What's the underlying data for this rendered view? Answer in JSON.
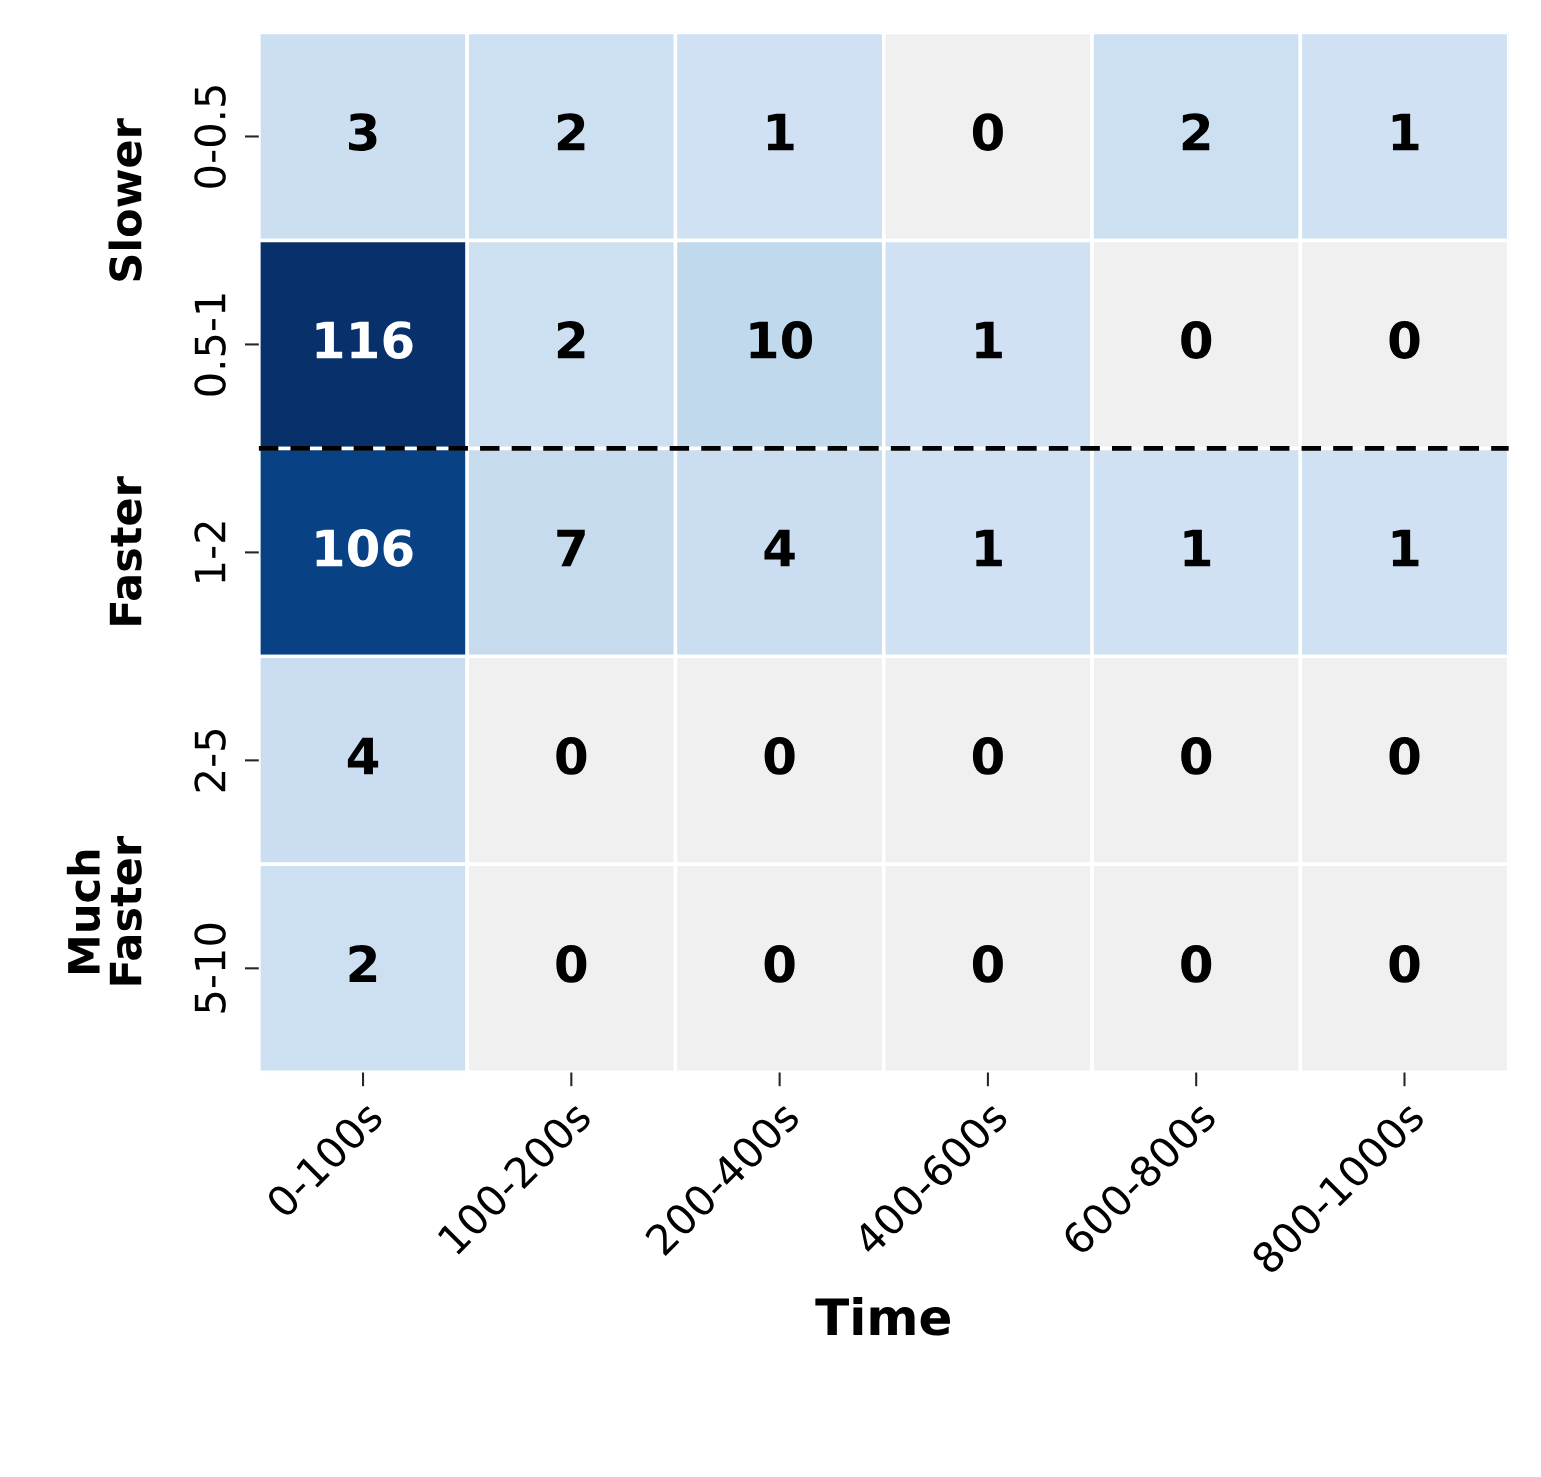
{
  "chart_data": {
    "type": "heatmap",
    "xlabel": "Time",
    "categories": [
      "0-100s",
      "100-200s",
      "200-400s",
      "400-600s",
      "600-800s",
      "800-1000s"
    ],
    "y_categories": [
      "0-0.5",
      "0.5-1",
      "1-2",
      "2-5",
      "5-10"
    ],
    "cells": [
      [
        3,
        2,
        1,
        0,
        2,
        1
      ],
      [
        116,
        2,
        10,
        1,
        0,
        0
      ],
      [
        106,
        7,
        4,
        1,
        1,
        1
      ],
      [
        4,
        0,
        0,
        0,
        0,
        0
      ],
      [
        2,
        0,
        0,
        0,
        0,
        0
      ]
    ],
    "data_labels": true,
    "annotations": [
      "Slower",
      "Faster",
      "Much\nFaster"
    ]
  }
}
